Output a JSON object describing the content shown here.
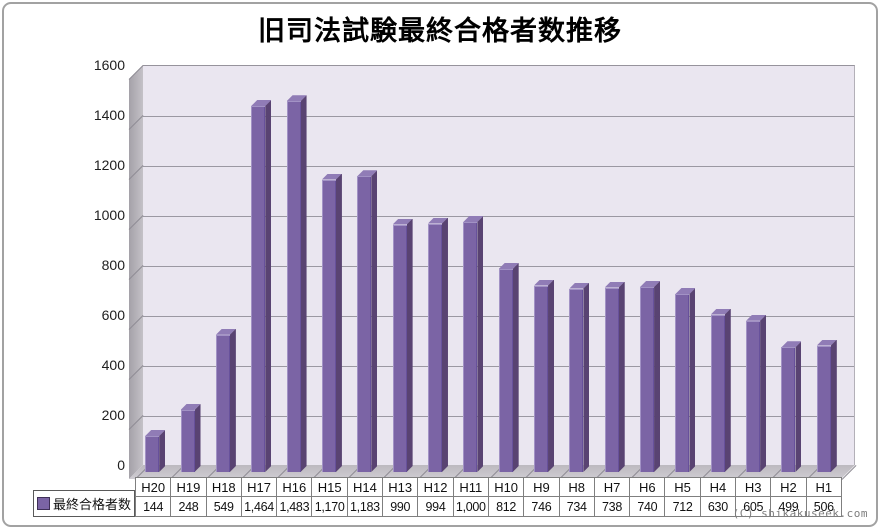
{
  "title": "旧司法試験最終合格者数推移",
  "watermark": "(C) shikakuseek.com",
  "legend": {
    "label": "最終合格者数"
  },
  "colors": {
    "bar_front": "#7b64a5",
    "bar_side": "#594372",
    "bar_top": "#907cb6",
    "plot_background": "#eae6f0",
    "wall": "#b5b2b8",
    "floor": "#c6c3c9",
    "gridline": "#9b98a2"
  },
  "chart_data": {
    "type": "bar",
    "style": "3d-column",
    "title": "旧司法試験最終合格者数推移",
    "categories": [
      "H20",
      "H19",
      "H18",
      "H17",
      "H16",
      "H15",
      "H14",
      "H13",
      "H12",
      "H11",
      "H10",
      "H9",
      "H8",
      "H7",
      "H6",
      "H5",
      "H4",
      "H3",
      "H2",
      "H1"
    ],
    "series": [
      {
        "name": "最終合格者数",
        "values": [
          144,
          248,
          549,
          1464,
          1483,
          1170,
          1183,
          990,
          994,
          1000,
          812,
          746,
          734,
          738,
          740,
          712,
          630,
          605,
          499,
          506
        ]
      }
    ],
    "value_labels": [
      "144",
      "248",
      "549",
      "1,464",
      "1,483",
      "1,170",
      "1,183",
      "990",
      "994",
      "1,000",
      "812",
      "746",
      "734",
      "738",
      "740",
      "712",
      "630",
      "605",
      "499",
      "506"
    ],
    "xlabel": "",
    "ylabel": "",
    "ylim": [
      0,
      1600
    ],
    "y_ticks": [
      0,
      200,
      400,
      600,
      800,
      1000,
      1200,
      1400,
      1600
    ],
    "grid": true,
    "legend_position": "bottom-left",
    "data_table_shown": true
  }
}
